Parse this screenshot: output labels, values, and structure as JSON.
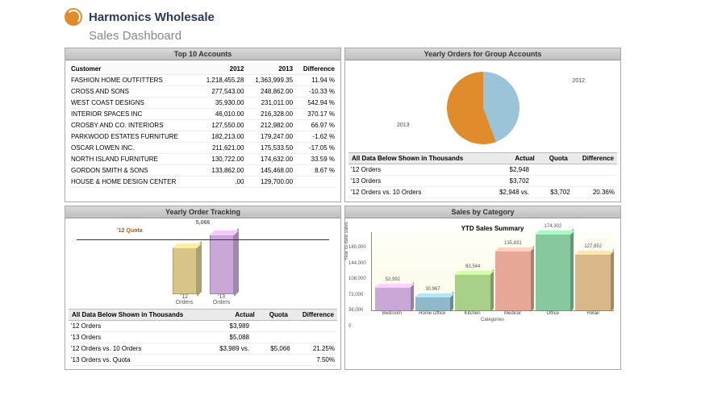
{
  "header": {
    "company": "Harmonics Wholesale",
    "subtitle": "Sales Dashboard"
  },
  "panels": {
    "top_accounts": {
      "title": "Top 10 Accounts",
      "columns": [
        "Customer",
        "2012",
        "2013",
        "Difference"
      ],
      "rows": [
        [
          "FASHION HOME OUTFITTERS",
          "1,218,455.28",
          "1,363,999.35",
          "11.94 %"
        ],
        [
          "CROSS AND SONS",
          "277,543.00",
          "248,862.00",
          "-10.33 %"
        ],
        [
          "WEST COAST DESIGNS",
          "35,930.00",
          "231,011.00",
          "542.94 %"
        ],
        [
          "INTERIOR SPACES INC",
          "46,010.00",
          "216,328.00",
          "370.17 %"
        ],
        [
          "CROSBY AND CO. INTERIORS",
          "127,550.00",
          "212,982.00",
          "66.97 %"
        ],
        [
          "PARKWOOD ESTATES FURNITURE",
          "182,213.00",
          "179,247.00",
          "-1.62 %"
        ],
        [
          "OSCAR LOWEN INC.",
          "211,621.00",
          "175,533.50",
          "-17.05 %"
        ],
        [
          "NORTH ISLAND FURNITURE",
          "130,722.00",
          "174,632.00",
          "33.59 %"
        ],
        [
          "GORDON SMITH & SONS",
          "133,862.00",
          "145,468.00",
          "8.67 %"
        ],
        [
          "HOUSE & HOME DESIGN CENTER",
          ".00",
          "129,700.00",
          ""
        ]
      ]
    },
    "group_orders": {
      "title": "Yearly Orders for Group Accounts",
      "pie": {
        "slices": [
          {
            "label": "2012",
            "value": 2948,
            "color": "#9bc4d8",
            "pct": 44.3
          },
          {
            "label": "2013",
            "value": 3702,
            "color": "#e08b2c",
            "pct": 55.7
          }
        ]
      },
      "summary": {
        "header": "All Data Below Shown in Thousands",
        "columns": [
          "",
          "Actual",
          "Quota",
          "Difference"
        ],
        "rows": [
          [
            "'12 Orders",
            "$2,948",
            "",
            ""
          ],
          [
            "'13 Orders",
            "$3,702",
            "",
            ""
          ],
          [
            "'12 Orders vs. 10 Orders",
            "$2,948 vs.",
            "$3,702",
            "20.36%"
          ]
        ]
      }
    },
    "order_tracking": {
      "title": "Yearly Order Tracking",
      "quota_label": "'12 Quota",
      "quota_value": "5,066",
      "bars": [
        {
          "label": "'12 Orders",
          "value": 3989,
          "color": "#d8c58a"
        },
        {
          "label": "'13 Orders",
          "value": 5088,
          "color": "#c9a8d8"
        }
      ],
      "ymax": 5500,
      "summary": {
        "header": "All Data Below Shown in Thousands",
        "columns": [
          "",
          "Actual",
          "Quota",
          "Difference"
        ],
        "rows": [
          [
            "'12 Orders",
            "$3,989",
            "",
            ""
          ],
          [
            "'13 Orders",
            "$5,088",
            "",
            ""
          ],
          [
            "'12 Orders vs. 10 Orders",
            "$3,989 vs.",
            "$5,066",
            "21.25%"
          ],
          [
            "'13 Orders vs. Quota",
            "",
            "",
            "7.50%"
          ]
        ]
      }
    },
    "sales_category": {
      "title": "Sales by Category",
      "chart_title": "YTD Sales Summary",
      "y_label": "Year to date sales",
      "x_label": "Categories",
      "ymax": 180000,
      "yticks": [
        0,
        36000,
        72000,
        108000,
        144000,
        180000
      ],
      "bars": [
        {
          "label": "Bedroom",
          "value": 52992,
          "color": "#c9a8d8"
        },
        {
          "label": "Home Office",
          "value": 30967,
          "color": "#8fb8c8"
        },
        {
          "label": "Kitchen",
          "value": 83544,
          "color": "#a8d088"
        },
        {
          "label": "Medical",
          "value": 135831,
          "color": "#e8a898"
        },
        {
          "label": "Office",
          "value": 174302,
          "color": "#88c89f"
        },
        {
          "label": "Retail",
          "value": 127852,
          "color": "#d8b888"
        }
      ]
    }
  }
}
